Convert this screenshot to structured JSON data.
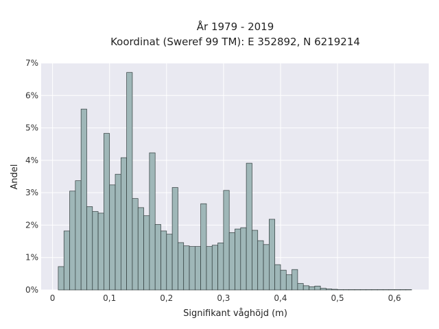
{
  "chart_data": {
    "type": "bar",
    "title_line1": "År 1979 - 2019",
    "title_line2": "Koordinat (Sweref 99 TM): E 352892, N 6219214",
    "xlabel": "Signifikant våghöjd (m)",
    "ylabel": "Andel",
    "xlim": [
      -0.02,
      0.66
    ],
    "ylim": [
      0,
      7
    ],
    "x_ticks": [
      0,
      0.1,
      0.2,
      0.3,
      0.4,
      0.5,
      0.6
    ],
    "x_tick_labels": [
      "0",
      "0,1",
      "0,2",
      "0,3",
      "0,4",
      "0,5",
      "0,6"
    ],
    "y_ticks": [
      0,
      1,
      2,
      3,
      4,
      5,
      6,
      7
    ],
    "y_tick_labels": [
      "0%",
      "1%",
      "2%",
      "3%",
      "4%",
      "5%",
      "6%",
      "7%"
    ],
    "grid": true,
    "bin_width": 0.01,
    "bin_start": [
      0.01,
      0.02,
      0.03,
      0.04,
      0.05,
      0.06,
      0.07,
      0.08,
      0.09,
      0.1,
      0.11,
      0.12,
      0.13,
      0.14,
      0.15,
      0.16,
      0.17,
      0.18,
      0.19,
      0.2,
      0.21,
      0.22,
      0.23,
      0.24,
      0.25,
      0.26,
      0.27,
      0.28,
      0.29,
      0.3,
      0.31,
      0.32,
      0.33,
      0.34,
      0.35,
      0.36,
      0.37,
      0.38,
      0.39,
      0.4,
      0.41,
      0.42,
      0.43,
      0.44,
      0.45,
      0.46,
      0.47,
      0.48,
      0.49,
      0.5,
      0.51,
      0.52,
      0.53,
      0.54,
      0.55,
      0.56,
      0.57,
      0.58,
      0.59,
      0.6,
      0.61,
      0.62
    ],
    "values": [
      0.72,
      1.82,
      3.05,
      3.37,
      5.58,
      2.57,
      2.42,
      2.37,
      4.83,
      3.24,
      3.57,
      4.08,
      6.71,
      2.82,
      2.54,
      2.29,
      4.23,
      2.02,
      1.82,
      1.72,
      3.16,
      1.46,
      1.36,
      1.34,
      1.34,
      2.66,
      1.34,
      1.38,
      1.45,
      3.07,
      1.77,
      1.88,
      1.92,
      3.91,
      1.84,
      1.52,
      1.4,
      2.18,
      0.78,
      0.61,
      0.47,
      0.63,
      0.2,
      0.13,
      0.1,
      0.12,
      0.05,
      0.03,
      0.02,
      0.01,
      0.01,
      0.01,
      0.01,
      0.01,
      0.01,
      0.01,
      0.01,
      0.01,
      0.01,
      0.01,
      0.01,
      0.01
    ],
    "colors": {
      "bar_fill": "#9fb7b8",
      "bar_edge": "#2f3a3a",
      "plot_bg": "#e9e9f1",
      "grid": "#ffffff"
    }
  }
}
